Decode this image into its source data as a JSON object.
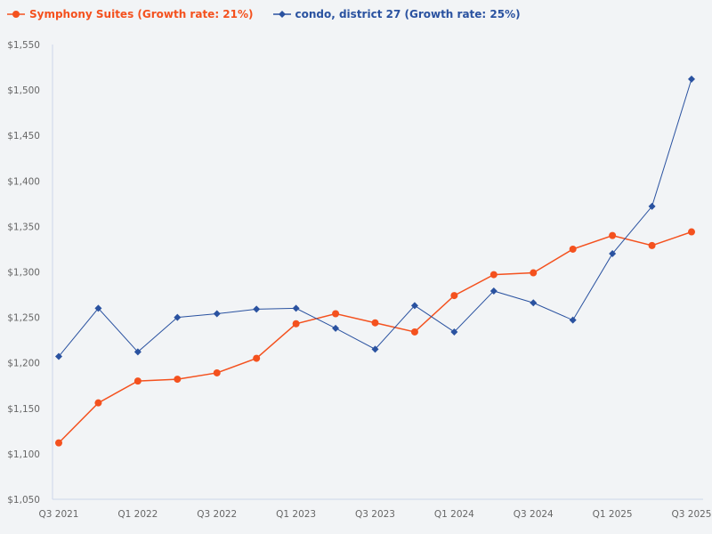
{
  "chart_data": {
    "type": "line",
    "title": "",
    "xlabel": "",
    "ylabel": "",
    "ylim": [
      1050,
      1550
    ],
    "yticks": [
      "$1,050",
      "$1,100",
      "$1,150",
      "$1,200",
      "$1,250",
      "$1,300",
      "$1,350",
      "$1,400",
      "$1,450",
      "$1,500",
      "$1,550"
    ],
    "ytick_values": [
      1050,
      1100,
      1150,
      1200,
      1250,
      1300,
      1350,
      1400,
      1450,
      1500,
      1550
    ],
    "x": [
      "Q3 2021",
      "Q4 2021",
      "Q1 2022",
      "Q2 2022",
      "Q3 2022",
      "Q4 2022",
      "Q1 2023",
      "Q2 2023",
      "Q3 2023",
      "Q4 2023",
      "Q1 2024",
      "Q2 2024",
      "Q3 2024",
      "Q4 2024",
      "Q1 2025",
      "Q2 2025",
      "Q3 2025"
    ],
    "xticks": [
      "Q3 2021",
      "Q1 2022",
      "Q3 2022",
      "Q1 2023",
      "Q3 2023",
      "Q1 2024",
      "Q3 2024",
      "Q1 2025",
      "Q3 2025"
    ],
    "grid": false,
    "legend_placement": "top-left",
    "series": [
      {
        "name": "Symphony Suites (Growth rate: 21%)",
        "color": "#f4511e",
        "marker": "circle",
        "values": [
          1112,
          1156,
          1180,
          1182,
          1189,
          1205,
          1243,
          1254,
          1244,
          1234,
          1274,
          1297,
          1299,
          1325,
          1340,
          1329,
          1344
        ]
      },
      {
        "name": "condo, district 27 (Growth rate: 25%)",
        "color": "#2a52a0",
        "marker": "diamond",
        "values": [
          1207,
          1260,
          1212,
          1250,
          1254,
          1259,
          1260,
          1238,
          1215,
          1263,
          1234,
          1279,
          1266,
          1247,
          1320,
          1372,
          1512
        ]
      }
    ]
  }
}
